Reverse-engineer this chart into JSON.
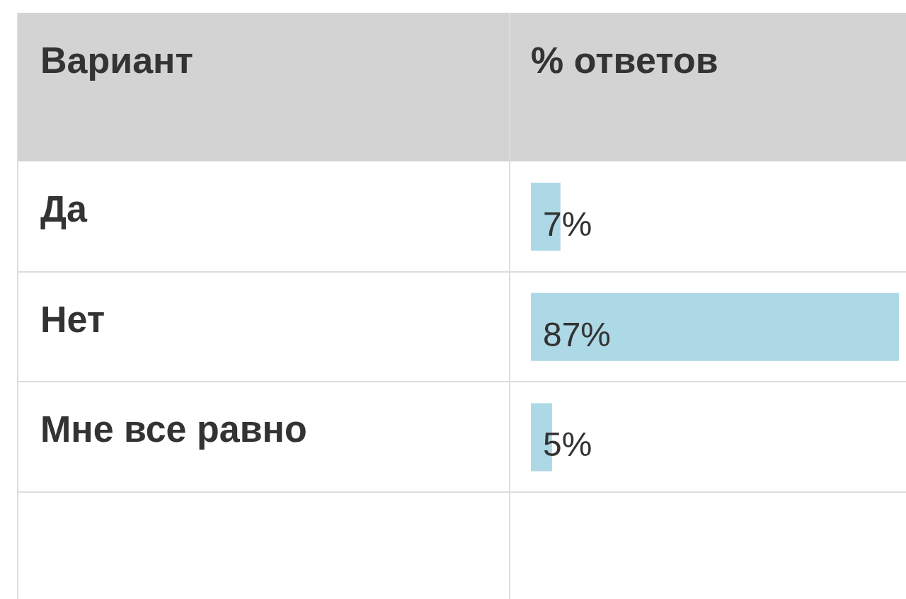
{
  "chart_data": {
    "type": "bar",
    "orientation": "horizontal",
    "ylabel": "Вариант",
    "xlabel": "% ответов",
    "categories": [
      "Да",
      "Нет",
      "Мне все равно"
    ],
    "values": [
      7,
      87,
      5
    ],
    "color": "#add8e6",
    "value_labels": [
      "7%",
      "87%",
      "5%"
    ]
  }
}
